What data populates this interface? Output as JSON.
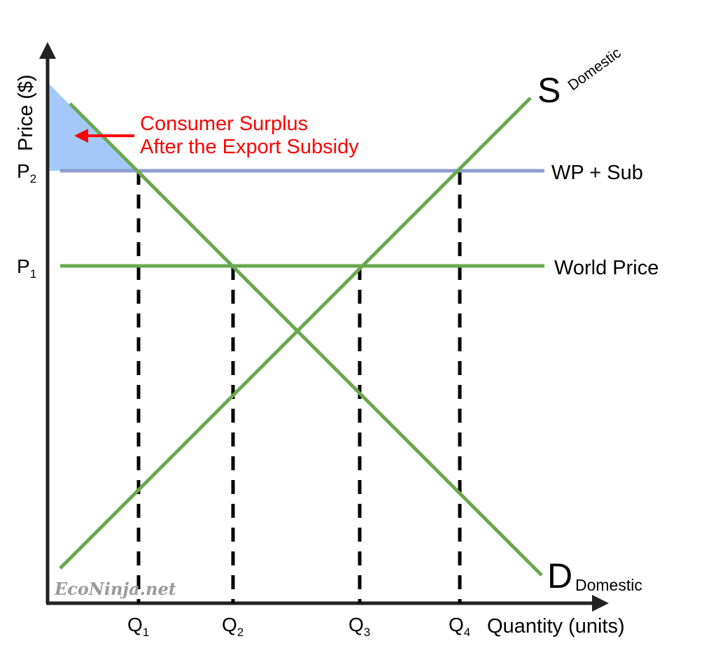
{
  "axes": {
    "y_label": "Price ($)",
    "x_label": "Quantity (units)"
  },
  "price_labels": {
    "p2": {
      "main": "P",
      "sub": "2"
    },
    "p1": {
      "main": "P",
      "sub": "1"
    }
  },
  "quantity_labels": {
    "q1": {
      "main": "Q",
      "sub": "1"
    },
    "q2": {
      "main": "Q",
      "sub": "2"
    },
    "q3": {
      "main": "Q",
      "sub": "3"
    },
    "q4": {
      "main": "Q",
      "sub": "4"
    }
  },
  "curves": {
    "supply": {
      "letter": "S",
      "sub": "Domestic"
    },
    "demand": {
      "letter": "D",
      "sub": "Domestic"
    },
    "wp_sub": "WP + Sub",
    "world_price": "World Price"
  },
  "annotation": {
    "line1": "Consumer Surplus",
    "line2": "After the Export Subsidy"
  },
  "watermark": "EcoNinja.net",
  "colors": {
    "curve_green": "#6aa84f",
    "wp_sub_line": "#8e9ccf",
    "surplus_fill": "#a4c8f8",
    "annotation_red": "#ff0000",
    "axis": "#222222",
    "watermark_gray": "#9a9a9a"
  }
}
